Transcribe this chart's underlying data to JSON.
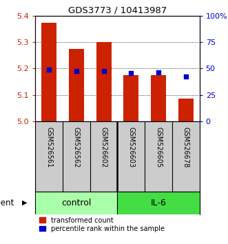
{
  "title": "GDS3773 / 10413987",
  "samples": [
    "GSM526561",
    "GSM526562",
    "GSM526602",
    "GSM526603",
    "GSM526605",
    "GSM526678"
  ],
  "red_values": [
    5.375,
    5.275,
    5.3,
    5.175,
    5.175,
    5.085
  ],
  "blue_values": [
    5.195,
    5.19,
    5.19,
    5.183,
    5.185,
    5.17
  ],
  "y_min": 5.0,
  "y_max": 5.4,
  "y_ticks": [
    5.0,
    5.1,
    5.2,
    5.3,
    5.4
  ],
  "right_y_ticks": [
    0,
    25,
    50,
    75,
    100
  ],
  "right_y_labels": [
    "0",
    "25",
    "50",
    "75",
    "100%"
  ],
  "groups": [
    {
      "label": "control",
      "color": "#AAFFAA"
    },
    {
      "label": "IL-6",
      "color": "#44DD44"
    }
  ],
  "bar_color": "#CC2200",
  "dot_color": "#0000CC",
  "bar_width": 0.55,
  "dot_size": 18,
  "grid_color": "#000000",
  "agent_label": "agent",
  "legend_red": "transformed count",
  "legend_blue": "percentile rank within the sample",
  "left_label_color": "#CC2200",
  "right_label_color": "#0000CC",
  "bg_plot": "#FFFFFF",
  "bg_sample": "#CCCCCC"
}
